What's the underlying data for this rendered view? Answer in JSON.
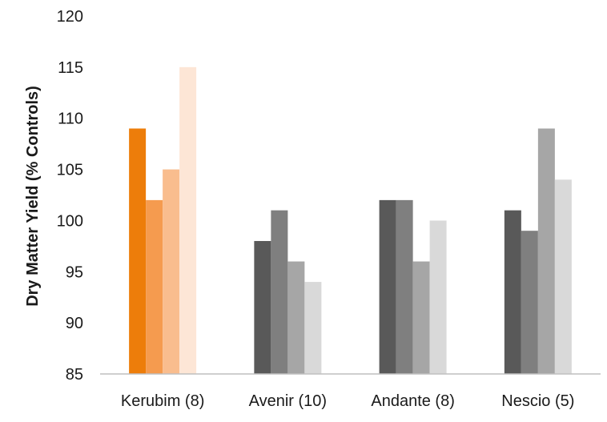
{
  "chart_data": {
    "type": "bar",
    "title": "",
    "xlabel": "",
    "ylabel": "Dry Matter Yield (% Controls)",
    "ylim": [
      85,
      120
    ],
    "yticks": [
      "85",
      "90",
      "95",
      "100",
      "105",
      "110",
      "115",
      "120"
    ],
    "grid": false,
    "legend": "none",
    "categories": [
      "Kerubim (8)",
      "Avenir (10)",
      "Andante (8)",
      "Nescio (5)"
    ],
    "groups": [
      {
        "values": [
          109,
          102,
          105,
          115
        ],
        "colors": [
          "#ed7d0a",
          "#f59b4f",
          "#f9bd8e",
          "#fde6d6"
        ]
      },
      {
        "values": [
          98,
          101,
          96,
          94
        ],
        "colors": [
          "#595959",
          "#7f7f7f",
          "#a6a6a6",
          "#d9d9d9"
        ]
      },
      {
        "values": [
          102,
          102,
          96,
          100
        ],
        "colors": [
          "#595959",
          "#7f7f7f",
          "#a6a6a6",
          "#d9d9d9"
        ]
      },
      {
        "values": [
          101,
          99,
          109,
          104
        ],
        "colors": [
          "#595959",
          "#7f7f7f",
          "#a6a6a6",
          "#d9d9d9"
        ]
      }
    ],
    "axis_color": "#bfbfbf"
  }
}
